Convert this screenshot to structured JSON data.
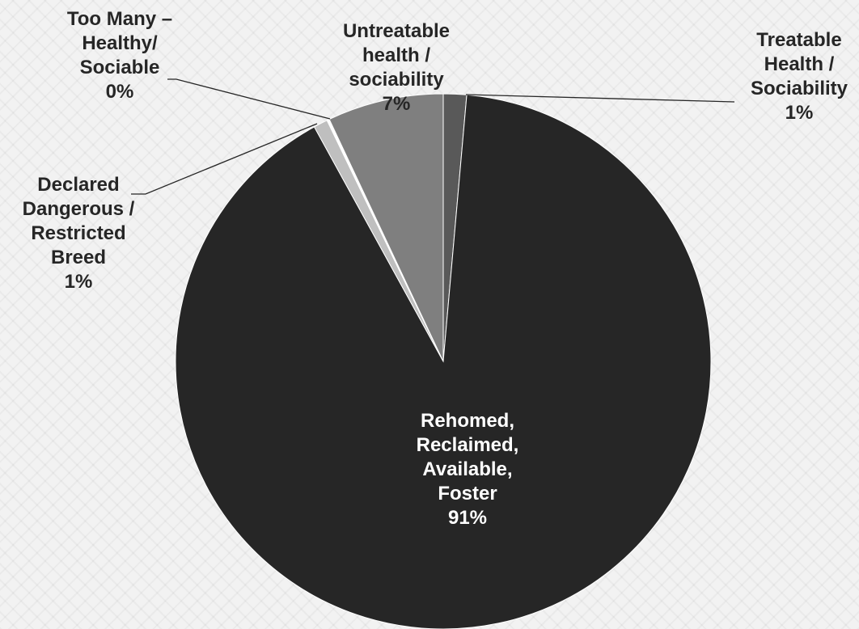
{
  "chart_data": {
    "type": "pie",
    "title": "",
    "legend": "none",
    "slices": [
      {
        "label_lines": [
          "Treatable",
          "Health /",
          "Sociability"
        ],
        "value": 1,
        "value_label": "1%",
        "color": "#595959"
      },
      {
        "label_lines": [
          "Rehomed,",
          "Reclaimed,",
          "Available,",
          "Foster"
        ],
        "value": 91,
        "value_label": "91%",
        "color": "#262626"
      },
      {
        "label_lines": [
          "Declared",
          "Dangerous /",
          "Restricted",
          "Breed"
        ],
        "value": 1,
        "value_label": "1%",
        "color": "#bfbfbf"
      },
      {
        "label_lines": [
          "Too Many –",
          "Healthy/",
          "Sociable"
        ],
        "value": 0,
        "value_label": "0%",
        "color": "#ffffff"
      },
      {
        "label_lines": [
          "Untreatable",
          "health /",
          "sociability"
        ],
        "value": 7,
        "value_label": "7%",
        "color": "#7f7f7f"
      }
    ]
  }
}
